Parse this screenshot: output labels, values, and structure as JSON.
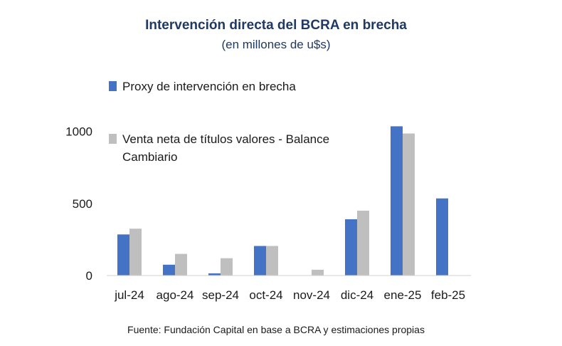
{
  "chart_data": {
    "type": "bar",
    "title": "Intervención directa del BCRA en brecha",
    "subtitle": "(en millones de u$s)",
    "categories": [
      "jul-24",
      "ago-24",
      "sep-24",
      "oct-24",
      "nov-24",
      "dic-24",
      "ene-25",
      "feb-25"
    ],
    "series": [
      {
        "name": "Proxy de intervención en brecha",
        "color": "#4472c4",
        "values": [
          285,
          75,
          15,
          205,
          null,
          390,
          1035,
          535
        ]
      },
      {
        "name": "Venta neta de títulos valores - Balance Cambiario",
        "name_lines": [
          "Venta neta de títulos valores - Balance",
          "Cambiario"
        ],
        "color": "#bfbfbf",
        "values": [
          325,
          150,
          120,
          205,
          40,
          450,
          985,
          null
        ]
      }
    ],
    "yticks": [
      0,
      500,
      1000
    ],
    "ylim": [
      0,
      1100
    ],
    "xlabel": "",
    "ylabel": "",
    "grid": false,
    "legend": "top-left",
    "source": "Fuente: Fundación Capital en base a BCRA y estimaciones propias"
  }
}
